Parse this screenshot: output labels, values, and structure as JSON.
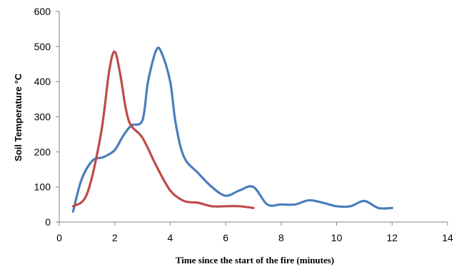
{
  "chart_data": {
    "type": "line",
    "title": "",
    "xlabel": "Time since the start of the fire (minutes)",
    "ylabel": "Soil Temperature °C",
    "xlim": [
      0,
      14
    ],
    "ylim": [
      0,
      600
    ],
    "xticks": [
      0,
      2,
      4,
      6,
      8,
      10,
      12,
      14
    ],
    "yticks": [
      0,
      100,
      200,
      300,
      400,
      500,
      600
    ],
    "grid": false,
    "legend": "none",
    "series": [
      {
        "color": "#4a7ebb",
        "x": [
          0.5,
          0.8,
          1.2,
          1.6,
          2.0,
          2.3,
          2.6,
          3.0,
          3.2,
          3.5,
          3.7,
          4.0,
          4.2,
          4.5,
          5.0,
          5.5,
          6.0,
          6.5,
          7.0,
          7.5,
          8.0,
          8.5,
          9.0,
          9.5,
          10.0,
          10.5,
          11.0,
          11.5,
          12.0
        ],
        "y": [
          30,
          120,
          175,
          185,
          205,
          245,
          275,
          290,
          400,
          490,
          480,
          400,
          280,
          185,
          140,
          100,
          75,
          90,
          100,
          50,
          50,
          50,
          62,
          55,
          45,
          45,
          60,
          40,
          40
        ]
      },
      {
        "color": "#be4b48",
        "x": [
          0.5,
          1.0,
          1.5,
          1.8,
          2.0,
          2.2,
          2.5,
          3.0,
          3.5,
          4.0,
          4.5,
          5.0,
          5.5,
          6.0,
          6.5,
          7.0
        ],
        "y": [
          45,
          80,
          250,
          430,
          485,
          420,
          290,
          240,
          160,
          90,
          60,
          55,
          45,
          45,
          45,
          40
        ]
      }
    ]
  }
}
